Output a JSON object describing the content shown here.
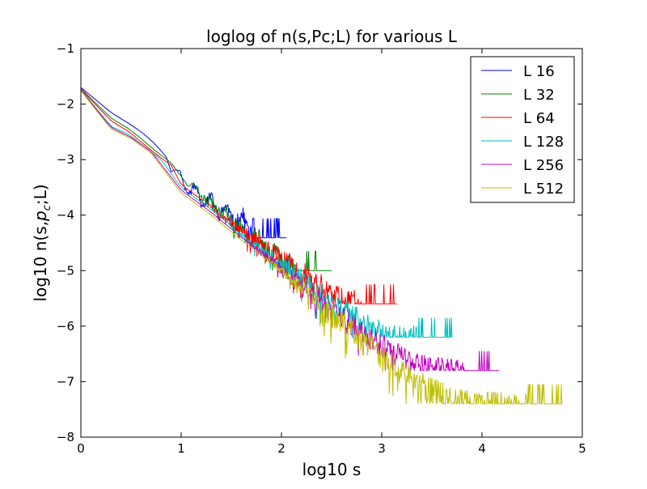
{
  "chart_data": {
    "type": "line",
    "title": "loglog of n(s,Pc;L) for various L",
    "xlabel": "log10 s",
    "ylabel_parts": [
      "log10 n(s,",
      "p",
      "c",
      ";L)"
    ],
    "xlim": [
      0,
      5
    ],
    "ylim": [
      -8,
      -1
    ],
    "xticks": [
      "0",
      "1",
      "2",
      "3",
      "4",
      "5"
    ],
    "xtick_values": [
      0,
      1,
      2,
      3,
      4,
      5
    ],
    "yticks": [
      "−8",
      "−7",
      "−6",
      "−5",
      "−4",
      "−3",
      "−2",
      "−1"
    ],
    "ytick_values": [
      -8,
      -7,
      -6,
      -5,
      -4,
      -3,
      -2,
      -1
    ],
    "grid": false,
    "legend_position": "top-right",
    "series": [
      {
        "name": "L 16",
        "color": "#0000ff",
        "x_max": 2.05,
        "y_floor": -4.41,
        "noise_start": 0.9,
        "noise_amp": 0.35,
        "bump": 0.12,
        "seed": 11,
        "x": [
          0,
          0.3,
          0.48,
          0.6,
          0.7,
          0.78,
          0.85,
          0.9,
          0.95,
          1.0,
          1.05,
          1.1,
          1.2,
          1.3,
          1.4,
          1.5,
          1.6,
          1.7,
          1.8,
          1.9,
          2.0,
          2.05
        ],
        "y": [
          -1.7,
          -2.15,
          -2.35,
          -2.5,
          -2.65,
          -2.8,
          -2.95,
          -3.1,
          -3.2,
          -3.35,
          -3.45,
          -3.55,
          -3.65,
          -3.78,
          -3.9,
          -4.0,
          -4.1,
          -4.2,
          -4.3,
          -4.38,
          -4.41,
          -4.41
        ]
      },
      {
        "name": "L 32",
        "color": "#008000",
        "x_max": 2.5,
        "y_floor": -5.0,
        "noise_start": 1.0,
        "noise_amp": 0.4,
        "bump": 0.06,
        "seed": 23,
        "x": [
          0,
          0.3,
          0.48,
          0.6,
          0.7,
          0.8,
          0.9,
          1.0,
          1.2,
          1.4,
          1.6,
          1.8,
          2.0,
          2.2,
          2.4,
          2.5
        ],
        "y": [
          -1.72,
          -2.25,
          -2.45,
          -2.62,
          -2.78,
          -2.92,
          -3.06,
          -3.3,
          -3.6,
          -3.9,
          -4.2,
          -4.5,
          -4.75,
          -4.95,
          -5.0,
          -5.0
        ]
      },
      {
        "name": "L 64",
        "color": "#ff0000",
        "x_max": 3.15,
        "y_floor": -5.6,
        "noise_start": 1.2,
        "noise_amp": 0.42,
        "bump": 0.04,
        "seed": 37,
        "x": [
          0,
          0.3,
          0.48,
          0.6,
          0.7,
          0.8,
          0.9,
          1.0,
          1.3,
          1.6,
          1.9,
          2.2,
          2.5,
          2.8,
          3.15
        ],
        "y": [
          -1.73,
          -2.3,
          -2.5,
          -2.68,
          -2.83,
          -2.97,
          -3.1,
          -3.45,
          -3.85,
          -4.25,
          -4.65,
          -5.05,
          -5.4,
          -5.58,
          -5.6
        ]
      },
      {
        "name": "L 128",
        "color": "#00bfbf",
        "x_max": 3.7,
        "y_floor": -6.2,
        "noise_start": 1.4,
        "noise_amp": 0.42,
        "bump": 0.02,
        "seed": 53,
        "x": [
          0,
          0.3,
          0.48,
          0.6,
          0.8,
          1.0,
          1.3,
          1.6,
          1.9,
          2.2,
          2.5,
          2.8,
          3.1,
          3.4,
          3.7
        ],
        "y": [
          -1.74,
          -2.4,
          -2.55,
          -2.72,
          -3.0,
          -3.5,
          -3.9,
          -4.35,
          -4.75,
          -5.15,
          -5.55,
          -5.9,
          -6.15,
          -6.2,
          -6.2
        ]
      },
      {
        "name": "L 256",
        "color": "#bf00bf",
        "x_max": 4.17,
        "y_floor": -6.8,
        "noise_start": 1.6,
        "noise_amp": 0.45,
        "bump": 0.0,
        "seed": 71,
        "x": [
          0,
          0.3,
          0.5,
          0.7,
          1.0,
          1.3,
          1.6,
          1.9,
          2.2,
          2.5,
          2.8,
          3.1,
          3.4,
          3.7,
          4.17
        ],
        "y": [
          -1.75,
          -2.42,
          -2.6,
          -2.85,
          -3.55,
          -3.95,
          -4.4,
          -4.8,
          -5.25,
          -5.7,
          -6.1,
          -6.45,
          -6.7,
          -6.8,
          -6.8
        ]
      },
      {
        "name": "L 512",
        "color": "#bfbf00",
        "x_max": 4.8,
        "y_floor": -7.4,
        "noise_start": 1.75,
        "noise_amp": 0.5,
        "bump": 0.0,
        "seed": 97,
        "x": [
          0,
          0.3,
          0.5,
          0.7,
          1.0,
          1.3,
          1.6,
          1.9,
          2.2,
          2.5,
          2.8,
          3.1,
          3.4,
          3.7,
          4.0,
          4.8
        ],
        "y": [
          -1.76,
          -2.45,
          -2.62,
          -2.88,
          -3.6,
          -4.0,
          -4.45,
          -4.85,
          -5.3,
          -5.8,
          -6.25,
          -6.7,
          -7.05,
          -7.3,
          -7.4,
          -7.4
        ]
      }
    ]
  }
}
